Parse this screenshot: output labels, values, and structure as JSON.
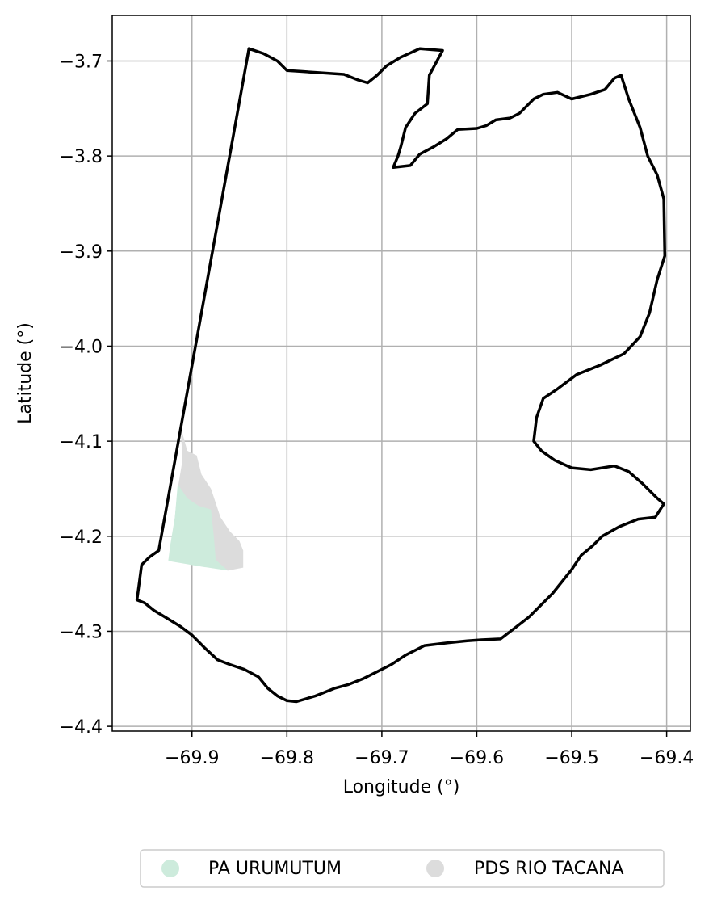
{
  "map": {
    "xlabel": "Longitude (°)",
    "ylabel": "Latitude (°)",
    "xlim": [
      -69.984,
      -69.375
    ],
    "ylim": [
      -4.405,
      -3.652
    ],
    "grid": true,
    "x_ticks": [
      -69.9,
      -69.8,
      -69.7,
      -69.6,
      -69.5,
      -69.4
    ],
    "y_ticks": [
      -3.7,
      -3.8,
      -3.9,
      -4.0,
      -4.1,
      -4.2,
      -4.3,
      -4.4
    ],
    "x_tick_labels": [
      "−69.9",
      "−69.8",
      "−69.7",
      "−69.6",
      "−69.5",
      "−69.4"
    ],
    "y_tick_labels": [
      "−3.7",
      "−3.8",
      "−3.9",
      "−4.0",
      "−4.1",
      "−4.2",
      "−4.3",
      "−4.4"
    ]
  },
  "colors": {
    "boundary": "#000000",
    "pa_urumutum": "#cdebdc",
    "pds_rio_tacana": "#dcdcdc",
    "grid": "#b0b0b0"
  },
  "legend": {
    "placement": "bottom-center",
    "items": [
      {
        "label": "PA URUMUTUM",
        "color": "#cdebdc"
      },
      {
        "label": "PDS RIO TACANA",
        "color": "#dcdcdc"
      }
    ]
  },
  "chart_data": {
    "type": "map",
    "regions": [
      {
        "name": "PDS RIO TACANA",
        "color": "#dcdcdc",
        "coords": [
          [
            -69.912,
            -4.085
          ],
          [
            -69.905,
            -4.11
          ],
          [
            -69.895,
            -4.115
          ],
          [
            -69.89,
            -4.135
          ],
          [
            -69.88,
            -4.15
          ],
          [
            -69.875,
            -4.165
          ],
          [
            -69.87,
            -4.18
          ],
          [
            -69.86,
            -4.195
          ],
          [
            -69.85,
            -4.205
          ],
          [
            -69.846,
            -4.215
          ],
          [
            -69.846,
            -4.233
          ],
          [
            -69.862,
            -4.236
          ],
          [
            -69.89,
            -4.23
          ],
          [
            -69.925,
            -4.226
          ],
          [
            -69.92,
            -4.2
          ],
          [
            -69.915,
            -4.15
          ],
          [
            -69.91,
            -4.12
          ]
        ]
      },
      {
        "name": "PA URUMUTUM",
        "color": "#cdebdc",
        "coords": [
          [
            -69.915,
            -4.145
          ],
          [
            -69.905,
            -4.16
          ],
          [
            -69.893,
            -4.168
          ],
          [
            -69.88,
            -4.172
          ],
          [
            -69.877,
            -4.2
          ],
          [
            -69.875,
            -4.225
          ],
          [
            -69.862,
            -4.236
          ],
          [
            -69.89,
            -4.232
          ],
          [
            -69.925,
            -4.226
          ],
          [
            -69.923,
            -4.21
          ],
          [
            -69.918,
            -4.18
          ]
        ]
      }
    ],
    "boundary": {
      "coords": [
        [
          -69.84,
          -3.687
        ],
        [
          -69.825,
          -3.692
        ],
        [
          -69.81,
          -3.7
        ],
        [
          -69.8,
          -3.71
        ],
        [
          -69.785,
          -3.711
        ],
        [
          -69.77,
          -3.712
        ],
        [
          -69.74,
          -3.714
        ],
        [
          -69.725,
          -3.72
        ],
        [
          -69.715,
          -3.723
        ],
        [
          -69.705,
          -3.715
        ],
        [
          -69.695,
          -3.705
        ],
        [
          -69.68,
          -3.696
        ],
        [
          -69.66,
          -3.687
        ],
        [
          -69.636,
          -3.689
        ],
        [
          -69.65,
          -3.715
        ],
        [
          -69.652,
          -3.745
        ],
        [
          -69.665,
          -3.755
        ],
        [
          -69.675,
          -3.77
        ],
        [
          -69.68,
          -3.79
        ],
        [
          -69.683,
          -3.8
        ],
        [
          -69.688,
          -3.812
        ],
        [
          -69.67,
          -3.81
        ],
        [
          -69.66,
          -3.798
        ],
        [
          -69.645,
          -3.79
        ],
        [
          -69.632,
          -3.782
        ],
        [
          -69.62,
          -3.772
        ],
        [
          -69.6,
          -3.771
        ],
        [
          -69.59,
          -3.768
        ],
        [
          -69.58,
          -3.762
        ],
        [
          -69.565,
          -3.76
        ],
        [
          -69.555,
          -3.755
        ],
        [
          -69.54,
          -3.74
        ],
        [
          -69.53,
          -3.735
        ],
        [
          -69.515,
          -3.733
        ],
        [
          -69.5,
          -3.74
        ],
        [
          -69.48,
          -3.735
        ],
        [
          -69.465,
          -3.73
        ],
        [
          -69.455,
          -3.718
        ],
        [
          -69.448,
          -3.715
        ],
        [
          -69.44,
          -3.74
        ],
        [
          -69.428,
          -3.77
        ],
        [
          -69.42,
          -3.8
        ],
        [
          -69.41,
          -3.82
        ],
        [
          -69.403,
          -3.845
        ],
        [
          -69.402,
          -3.905
        ],
        [
          -69.41,
          -3.93
        ],
        [
          -69.418,
          -3.965
        ],
        [
          -69.428,
          -3.99
        ],
        [
          -69.445,
          -4.008
        ],
        [
          -69.47,
          -4.02
        ],
        [
          -69.495,
          -4.03
        ],
        [
          -69.515,
          -4.045
        ],
        [
          -69.53,
          -4.055
        ],
        [
          -69.537,
          -4.075
        ],
        [
          -69.54,
          -4.1
        ],
        [
          -69.532,
          -4.11
        ],
        [
          -69.518,
          -4.12
        ],
        [
          -69.5,
          -4.128
        ],
        [
          -69.48,
          -4.13
        ],
        [
          -69.455,
          -4.126
        ],
        [
          -69.44,
          -4.132
        ],
        [
          -69.425,
          -4.145
        ],
        [
          -69.41,
          -4.16
        ],
        [
          -69.403,
          -4.166
        ],
        [
          -69.412,
          -4.18
        ],
        [
          -69.43,
          -4.182
        ],
        [
          -69.45,
          -4.19
        ],
        [
          -69.468,
          -4.2
        ],
        [
          -69.478,
          -4.21
        ],
        [
          -69.49,
          -4.22
        ],
        [
          -69.5,
          -4.235
        ],
        [
          -69.512,
          -4.25
        ],
        [
          -69.52,
          -4.26
        ],
        [
          -69.525,
          -4.265
        ],
        [
          -69.535,
          -4.275
        ],
        [
          -69.545,
          -4.285
        ],
        [
          -69.558,
          -4.295
        ],
        [
          -69.575,
          -4.308
        ],
        [
          -69.595,
          -4.309
        ],
        [
          -69.61,
          -4.31
        ],
        [
          -69.63,
          -4.312
        ],
        [
          -69.655,
          -4.315
        ],
        [
          -69.675,
          -4.325
        ],
        [
          -69.69,
          -4.335
        ],
        [
          -69.71,
          -4.345
        ],
        [
          -69.72,
          -4.35
        ],
        [
          -69.735,
          -4.356
        ],
        [
          -69.75,
          -4.36
        ],
        [
          -69.77,
          -4.368
        ],
        [
          -69.79,
          -4.374
        ],
        [
          -69.8,
          -4.373
        ],
        [
          -69.81,
          -4.368
        ],
        [
          -69.82,
          -4.36
        ],
        [
          -69.83,
          -4.348
        ],
        [
          -69.845,
          -4.34
        ],
        [
          -69.86,
          -4.335
        ],
        [
          -69.873,
          -4.33
        ],
        [
          -69.887,
          -4.317
        ],
        [
          -69.9,
          -4.304
        ],
        [
          -69.912,
          -4.295
        ],
        [
          -69.925,
          -4.287
        ],
        [
          -69.94,
          -4.278
        ],
        [
          -69.95,
          -4.27
        ],
        [
          -69.958,
          -4.267
        ],
        [
          -69.955,
          -4.245
        ],
        [
          -69.953,
          -4.23
        ],
        [
          -69.945,
          -4.222
        ],
        [
          -69.935,
          -4.215
        ]
      ]
    }
  }
}
